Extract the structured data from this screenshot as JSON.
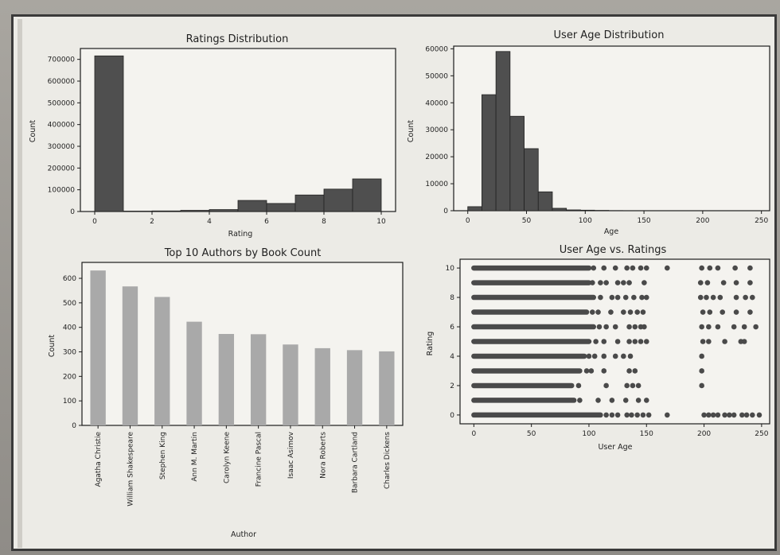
{
  "chart_data": [
    {
      "type": "bar",
      "title": "Ratings Distribution",
      "xlabel": "Rating",
      "ylabel": "Count",
      "x_ticks": [
        0,
        2,
        4,
        6,
        8,
        10
      ],
      "y_ticks": [
        0,
        100000,
        200000,
        300000,
        400000,
        500000,
        600000,
        700000
      ],
      "xlim": [
        -0.5,
        10.5
      ],
      "ylim": [
        0,
        750000
      ],
      "bins": [
        {
          "start": 0,
          "end": 1,
          "value": 716000
        },
        {
          "start": 1,
          "end": 2,
          "value": 1800
        },
        {
          "start": 2,
          "end": 3,
          "value": 2700
        },
        {
          "start": 3,
          "end": 4,
          "value": 5400
        },
        {
          "start": 4,
          "end": 5,
          "value": 8900
        },
        {
          "start": 5,
          "end": 6,
          "value": 51000
        },
        {
          "start": 6,
          "end": 7,
          "value": 37000
        },
        {
          "start": 7,
          "end": 8,
          "value": 76000
        },
        {
          "start": 8,
          "end": 9,
          "value": 103000
        },
        {
          "start": 9,
          "end": 10,
          "value": 150000
        }
      ],
      "colors": {
        "bar": "#4f4f4f"
      }
    },
    {
      "type": "bar",
      "title": "User Age Distribution",
      "xlabel": "Age",
      "ylabel": "Count",
      "x_ticks": [
        0,
        50,
        100,
        150,
        200,
        250
      ],
      "y_ticks": [
        0,
        10000,
        20000,
        30000,
        40000,
        50000,
        60000
      ],
      "xlim": [
        -12,
        257
      ],
      "ylim": [
        0,
        61000
      ],
      "bins": [
        {
          "start": 0,
          "end": 12,
          "value": 1500
        },
        {
          "start": 12,
          "end": 24,
          "value": 43000
        },
        {
          "start": 24,
          "end": 36,
          "value": 59000
        },
        {
          "start": 36,
          "end": 48,
          "value": 35000
        },
        {
          "start": 48,
          "end": 60,
          "value": 23000
        },
        {
          "start": 60,
          "end": 72,
          "value": 7000
        },
        {
          "start": 72,
          "end": 84,
          "value": 900
        },
        {
          "start": 84,
          "end": 96,
          "value": 300
        },
        {
          "start": 96,
          "end": 108,
          "value": 200
        },
        {
          "start": 108,
          "end": 120,
          "value": 120
        },
        {
          "start": 120,
          "end": 132,
          "value": 50
        }
      ],
      "colors": {
        "bar": "#4f4f4f"
      }
    },
    {
      "type": "bar",
      "title": "Top 10 Authors by Book Count",
      "xlabel": "Author",
      "ylabel": "Count",
      "categories": [
        "Agatha Christie",
        "William Shakespeare",
        "Stephen King",
        "Ann M. Martin",
        "Carolyn Keene",
        "Francine Pascal",
        "Isaac Asimov",
        "Nora Roberts",
        "Barbara Cartland",
        "Charles Dickens"
      ],
      "values": [
        632,
        567,
        524,
        423,
        373,
        372,
        330,
        315,
        307,
        302
      ],
      "y_ticks": [
        0,
        100,
        200,
        300,
        400,
        500,
        600
      ],
      "ylim": [
        0,
        665
      ],
      "colors": {
        "bar": "#a9a9a9"
      }
    },
    {
      "type": "scatter",
      "title": "User Age vs. Ratings",
      "xlabel": "User Age",
      "ylabel": "Rating",
      "x_ticks": [
        0,
        50,
        100,
        150,
        200,
        250
      ],
      "y_ticks": [
        0,
        2,
        4,
        6,
        8,
        10
      ],
      "xlim": [
        -12,
        257
      ],
      "ylim": [
        -0.6,
        10.6
      ],
      "rows": [
        {
          "rating": 10,
          "dense_max": 100,
          "dots": [
            104,
            113,
            123,
            133,
            138,
            145,
            150,
            168,
            198,
            205,
            212,
            227,
            240
          ]
        },
        {
          "rating": 9,
          "dense_max": 100,
          "dots": [
            103,
            110,
            115,
            125,
            130,
            135,
            148,
            197,
            203,
            217,
            228,
            240
          ]
        },
        {
          "rating": 8,
          "dense_max": 104,
          "dots": [
            110,
            120,
            125,
            132,
            139,
            146,
            150,
            197,
            202,
            208,
            214,
            228,
            236,
            242
          ]
        },
        {
          "rating": 7,
          "dense_max": 98,
          "dots": [
            103,
            108,
            119,
            130,
            136,
            142,
            147,
            199,
            205,
            216,
            228,
            240
          ]
        },
        {
          "rating": 6,
          "dense_max": 104,
          "dots": [
            109,
            115,
            123,
            135,
            140,
            145,
            148,
            198,
            204,
            212,
            226,
            235,
            245
          ]
        },
        {
          "rating": 5,
          "dense_max": 100,
          "dots": [
            106,
            113,
            125,
            135,
            140,
            145,
            150,
            199,
            204,
            218,
            232,
            235
          ]
        },
        {
          "rating": 4,
          "dense_max": 96,
          "dots": [
            100,
            105,
            113,
            123,
            130,
            136,
            198
          ]
        },
        {
          "rating": 3,
          "dense_max": 92,
          "dots": [
            98,
            102,
            113,
            135,
            140,
            198
          ]
        },
        {
          "rating": 2,
          "dense_max": 85,
          "dots": [
            91,
            115,
            133,
            138,
            143,
            198
          ]
        },
        {
          "rating": 1,
          "dense_max": 87,
          "dots": [
            92,
            108,
            120,
            132,
            143,
            150
          ]
        },
        {
          "rating": 0,
          "dense_max": 110,
          "dots": [
            115,
            120,
            125,
            133,
            137,
            142,
            147,
            152,
            168,
            200,
            204,
            208,
            212,
            218,
            222,
            226,
            233,
            237,
            242,
            248
          ]
        }
      ],
      "colors": {
        "point": "#4a4a4a"
      }
    }
  ]
}
